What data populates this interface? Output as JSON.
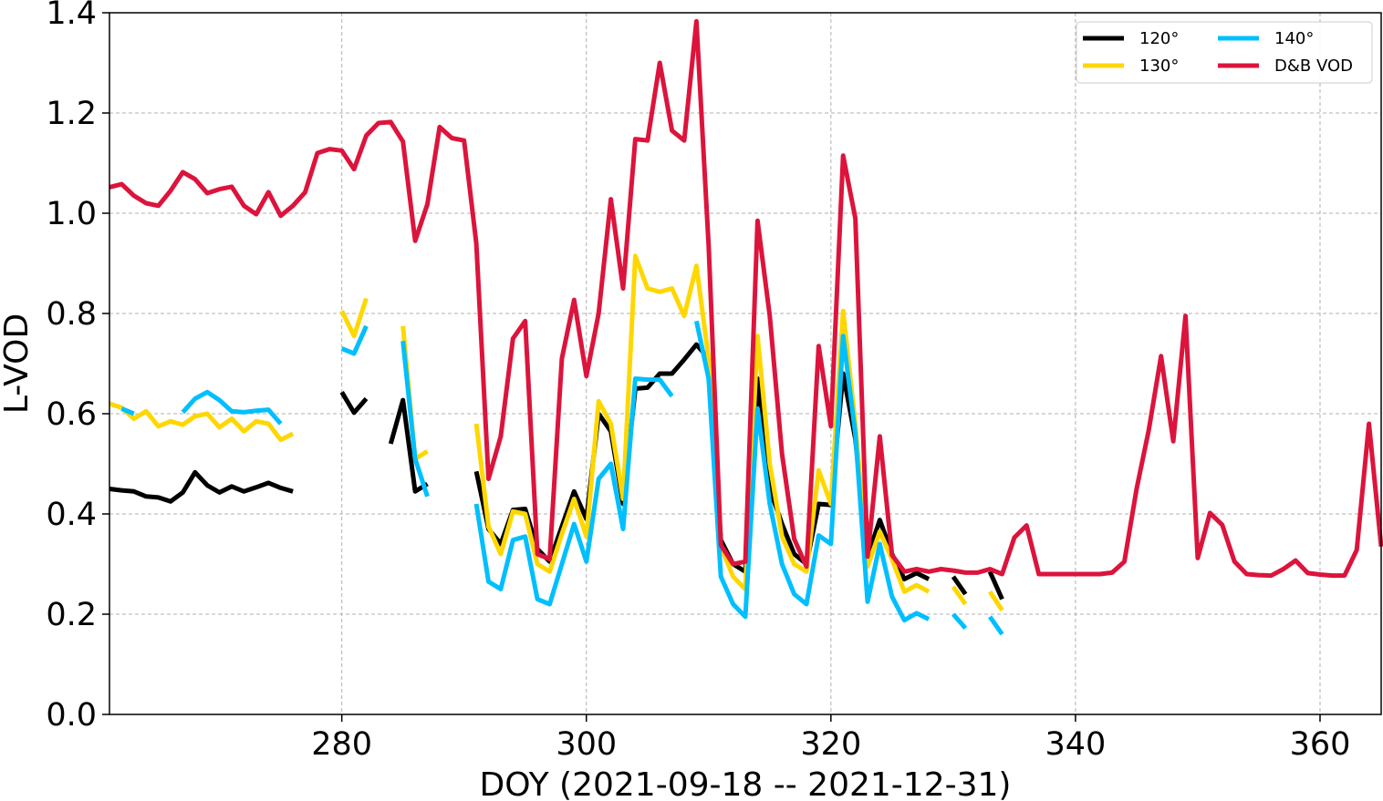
{
  "chart_data": {
    "type": "line",
    "title": "",
    "xlabel": "DOY (2021-09-18 -- 2021-12-31)",
    "ylabel": "L-VOD",
    "xlim": [
      261,
      365
    ],
    "ylim": [
      0,
      1.4
    ],
    "xticks": [
      280,
      300,
      320,
      340,
      360
    ],
    "yticks": [
      0.0,
      0.2,
      0.4,
      0.6,
      0.8,
      1.0,
      1.2,
      1.4
    ],
    "xtick_labels": [
      "280",
      "300",
      "320",
      "340",
      "360"
    ],
    "ytick_labels": [
      "0.0",
      "0.2",
      "0.4",
      "0.6",
      "0.8",
      "1.0",
      "1.2",
      "1.4"
    ],
    "grid": true,
    "legend_position": "top-right",
    "legend_columns": 2,
    "series": [
      {
        "name": "120°",
        "color": "#000000",
        "points": [
          [
            261,
            0.45
          ],
          [
            262,
            0.447
          ],
          [
            263,
            0.445
          ],
          [
            264,
            0.435
          ],
          [
            265,
            0.433
          ],
          [
            266,
            0.425
          ],
          [
            267,
            0.443
          ],
          [
            268,
            0.483
          ],
          [
            269,
            0.457
          ],
          [
            270,
            0.443
          ],
          [
            271,
            0.455
          ],
          [
            272,
            0.445
          ],
          [
            273,
            0.453
          ],
          [
            274,
            0.462
          ],
          [
            275,
            0.452
          ],
          [
            276,
            0.445
          ],
          null,
          [
            280,
            0.643
          ],
          [
            281,
            0.602
          ],
          [
            282,
            0.63
          ],
          null,
          [
            284,
            0.54
          ],
          [
            285,
            0.627
          ],
          [
            286,
            0.445
          ],
          [
            287,
            0.46
          ],
          null,
          [
            291,
            0.485
          ],
          [
            292,
            0.37
          ],
          [
            293,
            0.34
          ],
          [
            294,
            0.408
          ],
          [
            295,
            0.41
          ],
          [
            296,
            0.33
          ],
          [
            297,
            0.305
          ],
          [
            298,
            0.375
          ],
          [
            299,
            0.445
          ],
          [
            300,
            0.39
          ],
          [
            301,
            0.6
          ],
          [
            302,
            0.565
          ],
          [
            303,
            0.42
          ],
          [
            304,
            0.65
          ],
          [
            305,
            0.652
          ],
          [
            306,
            0.68
          ],
          [
            307,
            0.68
          ],
          [
            308,
            0.708
          ],
          [
            309,
            0.738
          ],
          [
            310,
            0.71
          ],
          [
            311,
            0.348
          ],
          [
            312,
            0.3
          ],
          [
            313,
            0.285
          ],
          [
            314,
            0.67
          ],
          [
            315,
            0.45
          ],
          [
            316,
            0.38
          ],
          [
            317,
            0.32
          ],
          [
            318,
            0.3
          ],
          [
            319,
            0.42
          ],
          [
            320,
            0.418
          ],
          [
            321,
            0.68
          ],
          [
            322,
            0.55
          ],
          [
            323,
            0.315
          ],
          [
            324,
            0.388
          ],
          [
            325,
            0.32
          ],
          [
            326,
            0.27
          ],
          [
            327,
            0.282
          ],
          [
            328,
            0.27
          ],
          null,
          [
            330,
            0.275
          ],
          [
            331,
            0.24
          ],
          null,
          [
            333,
            0.285
          ],
          [
            334,
            0.23
          ]
        ]
      },
      {
        "name": "130°",
        "color": "#ffd700",
        "points": [
          [
            261,
            0.62
          ],
          [
            262,
            0.612
          ],
          [
            263,
            0.59
          ],
          [
            264,
            0.605
          ],
          [
            265,
            0.575
          ],
          [
            266,
            0.585
          ],
          [
            267,
            0.578
          ],
          [
            268,
            0.595
          ],
          [
            269,
            0.6
          ],
          [
            270,
            0.573
          ],
          [
            271,
            0.59
          ],
          [
            272,
            0.565
          ],
          [
            273,
            0.585
          ],
          [
            274,
            0.58
          ],
          [
            275,
            0.548
          ],
          [
            276,
            0.56
          ],
          null,
          [
            280,
            0.805
          ],
          [
            281,
            0.755
          ],
          [
            282,
            0.83
          ],
          null,
          [
            285,
            0.775
          ],
          [
            286,
            0.51
          ],
          [
            287,
            0.525
          ],
          null,
          [
            291,
            0.58
          ],
          [
            292,
            0.375
          ],
          [
            293,
            0.32
          ],
          [
            294,
            0.405
          ],
          [
            295,
            0.4
          ],
          [
            296,
            0.3
          ],
          [
            297,
            0.285
          ],
          [
            298,
            0.36
          ],
          [
            299,
            0.43
          ],
          [
            300,
            0.355
          ],
          [
            301,
            0.625
          ],
          [
            302,
            0.58
          ],
          [
            303,
            0.43
          ],
          [
            304,
            0.915
          ],
          [
            305,
            0.85
          ],
          [
            306,
            0.843
          ],
          [
            307,
            0.85
          ],
          [
            308,
            0.795
          ],
          [
            309,
            0.895
          ],
          [
            310,
            0.71
          ],
          [
            311,
            0.335
          ],
          [
            312,
            0.275
          ],
          [
            313,
            0.25
          ],
          [
            314,
            0.755
          ],
          [
            315,
            0.5
          ],
          [
            316,
            0.355
          ],
          [
            317,
            0.3
          ],
          [
            318,
            0.285
          ],
          [
            319,
            0.487
          ],
          [
            320,
            0.42
          ],
          [
            321,
            0.805
          ],
          [
            322,
            0.58
          ],
          [
            323,
            0.295
          ],
          [
            324,
            0.365
          ],
          [
            325,
            0.31
          ],
          [
            326,
            0.245
          ],
          [
            327,
            0.258
          ],
          [
            328,
            0.245
          ],
          null,
          [
            330,
            0.255
          ],
          [
            331,
            0.22
          ],
          null,
          [
            333,
            0.245
          ],
          [
            334,
            0.208
          ]
        ]
      },
      {
        "name": "140°",
        "color": "#00bfff",
        "points": [
          [
            262,
            0.61
          ],
          [
            263,
            0.6
          ],
          null,
          [
            267,
            0.603
          ],
          [
            268,
            0.63
          ],
          [
            269,
            0.643
          ],
          [
            270,
            0.627
          ],
          [
            271,
            0.605
          ],
          [
            272,
            0.603
          ],
          [
            273,
            0.606
          ],
          [
            274,
            0.608
          ],
          [
            275,
            0.58
          ],
          null,
          [
            280,
            0.73
          ],
          [
            281,
            0.72
          ],
          [
            282,
            0.775
          ],
          null,
          [
            285,
            0.745
          ],
          [
            286,
            0.51
          ],
          [
            287,
            0.435
          ],
          null,
          [
            291,
            0.42
          ],
          [
            292,
            0.265
          ],
          [
            293,
            0.25
          ],
          [
            294,
            0.348
          ],
          [
            295,
            0.355
          ],
          [
            296,
            0.23
          ],
          [
            297,
            0.22
          ],
          [
            298,
            0.3
          ],
          [
            299,
            0.38
          ],
          [
            300,
            0.305
          ],
          [
            301,
            0.47
          ],
          [
            302,
            0.5
          ],
          [
            303,
            0.37
          ],
          [
            304,
            0.67
          ],
          [
            305,
            0.668
          ],
          [
            306,
            0.668
          ],
          [
            307,
            0.635
          ],
          null,
          [
            309,
            0.785
          ],
          [
            310,
            0.67
          ],
          [
            311,
            0.275
          ],
          [
            312,
            0.22
          ],
          [
            313,
            0.195
          ],
          [
            314,
            0.61
          ],
          [
            315,
            0.42
          ],
          [
            316,
            0.3
          ],
          [
            317,
            0.24
          ],
          [
            318,
            0.22
          ],
          [
            319,
            0.357
          ],
          [
            320,
            0.34
          ],
          [
            321,
            0.755
          ],
          [
            322,
            0.56
          ],
          [
            323,
            0.225
          ],
          [
            324,
            0.34
          ],
          [
            325,
            0.235
          ],
          [
            326,
            0.188
          ],
          [
            327,
            0.202
          ],
          [
            328,
            0.19
          ],
          null,
          [
            330,
            0.2
          ],
          [
            331,
            0.172
          ],
          null,
          [
            333,
            0.195
          ],
          [
            334,
            0.16
          ]
        ]
      },
      {
        "name": "D&B VOD",
        "color": "#dc143c",
        "points": [
          [
            261,
            1.052
          ],
          [
            262,
            1.058
          ],
          [
            263,
            1.035
          ],
          [
            264,
            1.02
          ],
          [
            265,
            1.015
          ],
          [
            266,
            1.045
          ],
          [
            267,
            1.082
          ],
          [
            268,
            1.068
          ],
          [
            269,
            1.04
          ],
          [
            270,
            1.048
          ],
          [
            271,
            1.053
          ],
          [
            272,
            1.015
          ],
          [
            273,
            0.998
          ],
          [
            274,
            1.042
          ],
          [
            275,
            0.995
          ],
          [
            276,
            1.015
          ],
          [
            277,
            1.042
          ],
          [
            278,
            1.12
          ],
          [
            279,
            1.128
          ],
          [
            280,
            1.125
          ],
          [
            281,
            1.088
          ],
          [
            282,
            1.155
          ],
          [
            283,
            1.18
          ],
          [
            284,
            1.182
          ],
          [
            285,
            1.143
          ],
          [
            286,
            0.945
          ],
          [
            287,
            1.018
          ],
          [
            288,
            1.172
          ],
          [
            289,
            1.15
          ],
          [
            290,
            1.145
          ],
          [
            291,
            0.94
          ],
          [
            292,
            0.47
          ],
          [
            293,
            0.555
          ],
          [
            294,
            0.75
          ],
          [
            295,
            0.785
          ],
          [
            296,
            0.32
          ],
          [
            297,
            0.31
          ],
          [
            298,
            0.71
          ],
          [
            299,
            0.827
          ],
          [
            300,
            0.675
          ],
          [
            301,
            0.8
          ],
          [
            302,
            1.028
          ],
          [
            303,
            0.85
          ],
          [
            304,
            1.148
          ],
          [
            305,
            1.145
          ],
          [
            306,
            1.3
          ],
          [
            307,
            1.165
          ],
          [
            308,
            1.145
          ],
          [
            309,
            1.383
          ],
          [
            310,
            0.935
          ],
          [
            311,
            0.338
          ],
          [
            312,
            0.3
          ],
          [
            313,
            0.305
          ],
          [
            314,
            0.985
          ],
          [
            315,
            0.795
          ],
          [
            316,
            0.52
          ],
          [
            317,
            0.35
          ],
          [
            318,
            0.295
          ],
          [
            319,
            0.735
          ],
          [
            320,
            0.575
          ],
          [
            321,
            1.115
          ],
          [
            322,
            0.99
          ],
          [
            323,
            0.315
          ],
          [
            324,
            0.555
          ],
          [
            325,
            0.318
          ],
          [
            326,
            0.285
          ],
          [
            327,
            0.29
          ],
          [
            328,
            0.285
          ],
          [
            329,
            0.29
          ],
          [
            330,
            0.287
          ],
          [
            331,
            0.283
          ],
          [
            332,
            0.283
          ],
          [
            333,
            0.29
          ],
          [
            334,
            0.28
          ],
          [
            335,
            0.353
          ],
          [
            336,
            0.377
          ],
          [
            337,
            0.28
          ],
          [
            338,
            0.28
          ],
          [
            339,
            0.28
          ],
          [
            340,
            0.28
          ],
          [
            341,
            0.28
          ],
          [
            342,
            0.28
          ],
          [
            343,
            0.283
          ],
          [
            344,
            0.305
          ],
          [
            345,
            0.45
          ],
          [
            346,
            0.568
          ],
          [
            347,
            0.715
          ],
          [
            348,
            0.545
          ],
          [
            349,
            0.795
          ],
          [
            350,
            0.312
          ],
          [
            351,
            0.402
          ],
          [
            352,
            0.378
          ],
          [
            353,
            0.305
          ],
          [
            354,
            0.28
          ],
          [
            355,
            0.278
          ],
          [
            356,
            0.277
          ],
          [
            357,
            0.29
          ],
          [
            358,
            0.307
          ],
          [
            359,
            0.282
          ],
          [
            360,
            0.279
          ],
          [
            361,
            0.277
          ],
          [
            362,
            0.277
          ],
          [
            363,
            0.328
          ],
          [
            364,
            0.58
          ],
          [
            365,
            0.335
          ]
        ]
      }
    ]
  }
}
